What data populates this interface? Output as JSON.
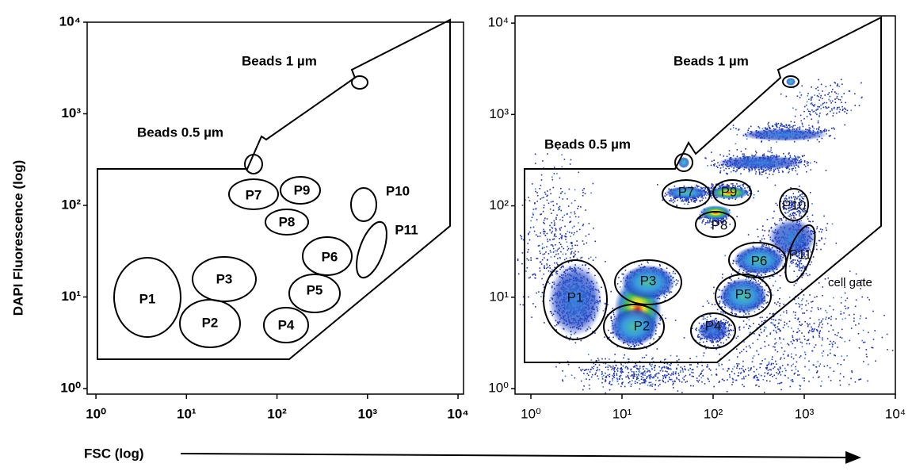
{
  "chart_data": [
    {
      "type": "scatter",
      "x_label": "FSC (log)",
      "y_label": "DAPI  Fluorescence (log)",
      "xscale": "log",
      "yscale": "log",
      "xlim": [
        0.8,
        11500
      ],
      "ylim": [
        0.87,
        10000
      ],
      "xticks": [
        {
          "value": 1,
          "label": "10⁰"
        },
        {
          "value": 10,
          "label": "10¹"
        },
        {
          "value": 100,
          "label": "10²"
        },
        {
          "value": 1000,
          "label": "10³"
        },
        {
          "value": 10000,
          "label": "10⁴"
        }
      ],
      "yticks": [
        {
          "value": 1,
          "label": "10⁰"
        },
        {
          "value": 10,
          "label": "10¹"
        },
        {
          "value": 100,
          "label": "10²"
        },
        {
          "value": 1000,
          "label": "10³"
        },
        {
          "value": 10000,
          "label": "10⁴"
        }
      ],
      "annotations": [
        "Beads 1 µm",
        "Beads 0.5 µm"
      ],
      "gates": [
        "P1",
        "P2",
        "P3",
        "P4",
        "P5",
        "P6",
        "P7",
        "P8",
        "P9",
        "P10",
        "P11"
      ]
    },
    {
      "type": "density",
      "xscale": "log",
      "yscale": "log",
      "xlim": [
        0.67,
        10000
      ],
      "ylim": [
        0.87,
        12000
      ],
      "xticks": [
        {
          "value": 1,
          "label": "10⁰"
        },
        {
          "value": 10,
          "label": "10¹"
        },
        {
          "value": 100,
          "label": "10²"
        },
        {
          "value": 1000,
          "label": "10³"
        },
        {
          "value": 10000,
          "label": "10⁴"
        }
      ],
      "yticks": [
        {
          "value": 1,
          "label": "10⁰"
        },
        {
          "value": 10,
          "label": "10¹"
        },
        {
          "value": 100,
          "label": "10²"
        },
        {
          "value": 1000,
          "label": "10³"
        },
        {
          "value": 10000,
          "label": "10⁴"
        }
      ],
      "annotations": [
        "Beads 1 µm",
        "Beads 0.5 µm",
        "cell gate"
      ],
      "gates": [
        "P1",
        "P2",
        "P3",
        "P4",
        "P5",
        "P6",
        "P7",
        "P8",
        "P9",
        "P10",
        "P11"
      ]
    }
  ]
}
